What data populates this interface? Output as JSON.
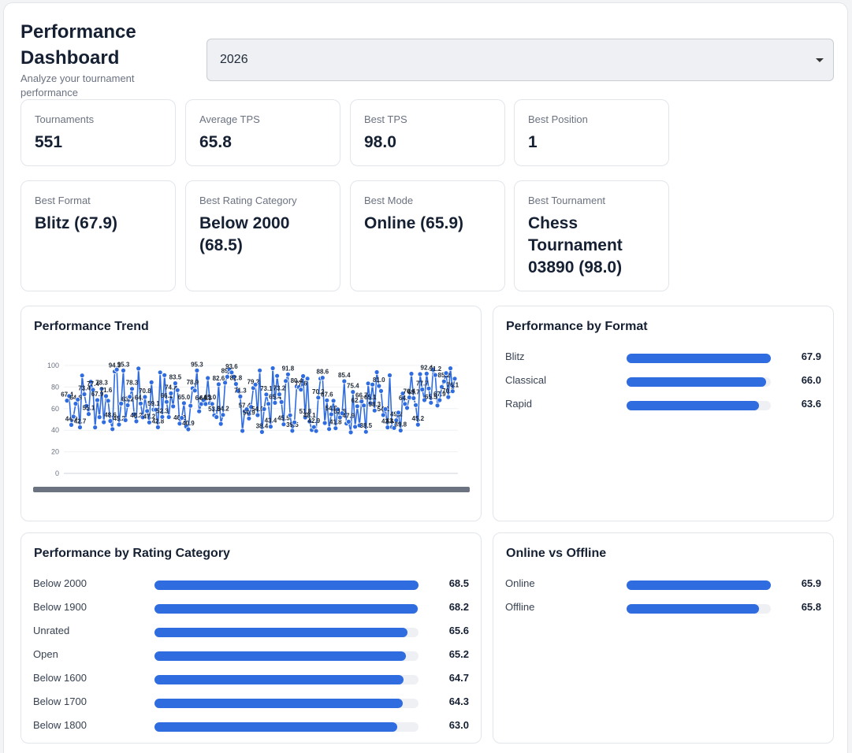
{
  "header": {
    "title": "Performance Dashboard",
    "subtitle": "Analyze your tournament performance"
  },
  "year_select": {
    "value": "2026"
  },
  "stats": [
    {
      "label": "Tournaments",
      "value": "551"
    },
    {
      "label": "Average TPS",
      "value": "65.8"
    },
    {
      "label": "Best TPS",
      "value": "98.0"
    },
    {
      "label": "Best Position",
      "value": "1"
    },
    {
      "label": "Best Format",
      "value": "Blitz (67.9)"
    },
    {
      "label": "Best Rating Category",
      "value": "Below 2000 (68.5)"
    },
    {
      "label": "Best Mode",
      "value": "Online (65.9)"
    },
    {
      "label": "Best Tournament",
      "value": "Chess Tournament 03890 (98.0)"
    }
  ],
  "trend": {
    "title": "Performance Trend"
  },
  "format": {
    "title": "Performance by Format",
    "items": [
      {
        "label": "Blitz",
        "value": "67.9",
        "pct": 0.679
      },
      {
        "label": "Classical",
        "value": "66.0",
        "pct": 0.66
      },
      {
        "label": "Rapid",
        "value": "63.6",
        "pct": 0.636
      }
    ]
  },
  "rating": {
    "title": "Performance by Rating Category",
    "items": [
      {
        "label": "Below 2000",
        "value": "68.5",
        "pct": 0.685
      },
      {
        "label": "Below 1900",
        "value": "68.2",
        "pct": 0.682
      },
      {
        "label": "Unrated",
        "value": "65.6",
        "pct": 0.656
      },
      {
        "label": "Open",
        "value": "65.2",
        "pct": 0.652
      },
      {
        "label": "Below 1600",
        "value": "64.7",
        "pct": 0.647
      },
      {
        "label": "Below 1700",
        "value": "64.3",
        "pct": 0.643
      },
      {
        "label": "Below 1800",
        "value": "63.0",
        "pct": 0.63
      }
    ]
  },
  "mode": {
    "title": "Online vs Offline",
    "items": [
      {
        "label": "Online",
        "value": "65.9",
        "pct": 0.659
      },
      {
        "label": "Offline",
        "value": "65.8",
        "pct": 0.658
      }
    ]
  },
  "chart_data": {
    "type": "line",
    "title": "Performance Trend",
    "ylim": [
      0,
      100
    ],
    "yticks": [
      0,
      20,
      40,
      60,
      80,
      100
    ],
    "grid": true,
    "series_color": "#2f6ce0",
    "point_count": 551,
    "sample_values": [
      94.5,
      87.1,
      81.1,
      91.9,
      95.0,
      98.0,
      96.3,
      96.0,
      94.6,
      95.6,
      97.7,
      96.0,
      87.9,
      96.6,
      97.4,
      91.9,
      96.7,
      90.6,
      96.8,
      97.6,
      94.1,
      96.8,
      96.5
    ]
  },
  "colors": {
    "accent": "#2f6ce0",
    "track": "#eef0f3",
    "border": "#e2e5ea"
  }
}
